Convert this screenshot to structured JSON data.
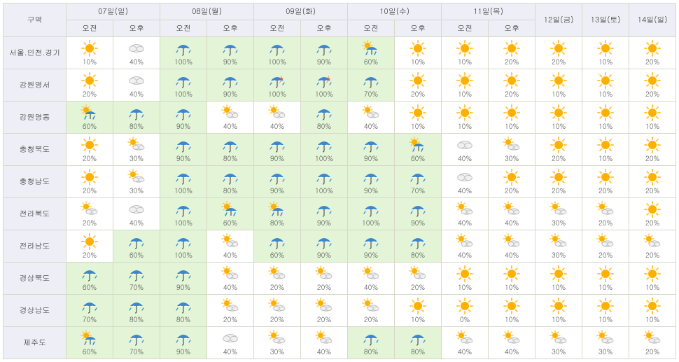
{
  "header": {
    "region_label": "구역",
    "days": [
      {
        "label": "07일(일)",
        "split": true,
        "sub": [
          "오전",
          "오후"
        ]
      },
      {
        "label": "08일(월)",
        "split": true,
        "sub": [
          "오전",
          "오후"
        ]
      },
      {
        "label": "09일(화)",
        "split": true,
        "sub": [
          "오전",
          "오후"
        ]
      },
      {
        "label": "10일(수)",
        "split": true,
        "sub": [
          "오전",
          "오후"
        ]
      },
      {
        "label": "11일(목)",
        "split": true,
        "sub": [
          "오전",
          "오후"
        ]
      },
      {
        "label": "12일(금)",
        "split": false
      },
      {
        "label": "13일(토)",
        "split": false
      },
      {
        "label": "14일(일)",
        "split": false
      }
    ]
  },
  "colors": {
    "rain_bg": "#e3f4d7",
    "header_bg": "#eeeef6",
    "border": "#d8d8c8",
    "sun_core": "#ffb000",
    "sun_ray": "#ffc840",
    "cloud_fill": "#f0f0f0",
    "cloud_stroke": "#b8b8b8",
    "rain_umbrella": "#3a86d1",
    "thunder": "#e74c3c"
  },
  "legend_icons": {
    "sunny": "sunny",
    "partly": "partly-cloudy",
    "cloudy": "cloudy",
    "rain": "rain",
    "rain_sun": "rain-sun",
    "storm": "rain-thunder"
  },
  "regions": [
    {
      "name": "서울.인천.경기",
      "cells": [
        {
          "p": 10,
          "i": "sunny"
        },
        {
          "p": 40,
          "i": "cloudy"
        },
        {
          "p": 100,
          "i": "rain"
        },
        {
          "p": 90,
          "i": "rain"
        },
        {
          "p": 100,
          "i": "rain"
        },
        {
          "p": 90,
          "i": "rain"
        },
        {
          "p": 60,
          "i": "rain_sun"
        },
        {
          "p": 10,
          "i": "sunny"
        },
        {
          "p": 10,
          "i": "sunny"
        },
        {
          "p": 20,
          "i": "sunny"
        },
        {
          "p": 20,
          "i": "sunny"
        },
        {
          "p": 10,
          "i": "sunny"
        },
        {
          "p": 20,
          "i": "sunny"
        }
      ]
    },
    {
      "name": "강원영서",
      "cells": [
        {
          "p": 20,
          "i": "sunny"
        },
        {
          "p": 40,
          "i": "cloudy"
        },
        {
          "p": 100,
          "i": "rain"
        },
        {
          "p": 90,
          "i": "rain"
        },
        {
          "p": 100,
          "i": "storm"
        },
        {
          "p": 100,
          "i": "storm"
        },
        {
          "p": 70,
          "i": "rain"
        },
        {
          "p": 20,
          "i": "sunny"
        },
        {
          "p": 10,
          "i": "sunny"
        },
        {
          "p": 20,
          "i": "sunny"
        },
        {
          "p": 10,
          "i": "sunny"
        },
        {
          "p": 10,
          "i": "sunny"
        },
        {
          "p": 20,
          "i": "sunny"
        }
      ]
    },
    {
      "name": "강원영동",
      "cells": [
        {
          "p": 60,
          "i": "rain_sun"
        },
        {
          "p": 80,
          "i": "rain"
        },
        {
          "p": 90,
          "i": "rain"
        },
        {
          "p": 40,
          "i": "partly"
        },
        {
          "p": 40,
          "i": "partly"
        },
        {
          "p": 80,
          "i": "rain"
        },
        {
          "p": 40,
          "i": "partly"
        },
        {
          "p": 10,
          "i": "sunny"
        },
        {
          "p": 10,
          "i": "sunny"
        },
        {
          "p": 10,
          "i": "sunny"
        },
        {
          "p": 10,
          "i": "sunny"
        },
        {
          "p": 10,
          "i": "sunny"
        },
        {
          "p": 10,
          "i": "sunny"
        }
      ]
    },
    {
      "name": "충청북도",
      "cells": [
        {
          "p": 20,
          "i": "sunny"
        },
        {
          "p": 30,
          "i": "partly"
        },
        {
          "p": 90,
          "i": "rain"
        },
        {
          "p": 80,
          "i": "rain"
        },
        {
          "p": 90,
          "i": "rain"
        },
        {
          "p": 100,
          "i": "rain"
        },
        {
          "p": 90,
          "i": "rain"
        },
        {
          "p": 60,
          "i": "rain_sun"
        },
        {
          "p": 40,
          "i": "cloudy"
        },
        {
          "p": 30,
          "i": "partly"
        },
        {
          "p": 20,
          "i": "sunny"
        },
        {
          "p": 10,
          "i": "sunny"
        },
        {
          "p": 20,
          "i": "sunny"
        }
      ]
    },
    {
      "name": "충청남도",
      "cells": [
        {
          "p": 20,
          "i": "sunny"
        },
        {
          "p": 30,
          "i": "partly"
        },
        {
          "p": 100,
          "i": "rain"
        },
        {
          "p": 80,
          "i": "rain"
        },
        {
          "p": 90,
          "i": "rain"
        },
        {
          "p": 100,
          "i": "rain"
        },
        {
          "p": 90,
          "i": "rain"
        },
        {
          "p": 70,
          "i": "rain"
        },
        {
          "p": 40,
          "i": "cloudy"
        },
        {
          "p": 20,
          "i": "sunny"
        },
        {
          "p": 20,
          "i": "sunny"
        },
        {
          "p": 20,
          "i": "sunny"
        },
        {
          "p": 20,
          "i": "sunny"
        }
      ]
    },
    {
      "name": "전라북도",
      "cells": [
        {
          "p": 20,
          "i": "partly"
        },
        {
          "p": 40,
          "i": "cloudy"
        },
        {
          "p": 100,
          "i": "rain"
        },
        {
          "p": 60,
          "i": "rain_sun"
        },
        {
          "p": 80,
          "i": "rain_sun"
        },
        {
          "p": 90,
          "i": "rain"
        },
        {
          "p": 100,
          "i": "rain"
        },
        {
          "p": 90,
          "i": "rain"
        },
        {
          "p": 40,
          "i": "partly"
        },
        {
          "p": 40,
          "i": "partly"
        },
        {
          "p": 30,
          "i": "partly"
        },
        {
          "p": 20,
          "i": "partly"
        },
        {
          "p": 20,
          "i": "sunny"
        }
      ]
    },
    {
      "name": "전라남도",
      "cells": [
        {
          "p": 20,
          "i": "sunny"
        },
        {
          "p": 60,
          "i": "rain"
        },
        {
          "p": 100,
          "i": "rain"
        },
        {
          "p": 40,
          "i": "partly"
        },
        {
          "p": 60,
          "i": "rain"
        },
        {
          "p": 90,
          "i": "rain"
        },
        {
          "p": 90,
          "i": "rain"
        },
        {
          "p": 80,
          "i": "rain"
        },
        {
          "p": 40,
          "i": "partly"
        },
        {
          "p": 40,
          "i": "partly"
        },
        {
          "p": 30,
          "i": "partly"
        },
        {
          "p": 20,
          "i": "partly"
        },
        {
          "p": 20,
          "i": "partly"
        }
      ]
    },
    {
      "name": "경상북도",
      "cells": [
        {
          "p": 60,
          "i": "rain"
        },
        {
          "p": 70,
          "i": "rain"
        },
        {
          "p": 90,
          "i": "rain"
        },
        {
          "p": 40,
          "i": "partly"
        },
        {
          "p": 20,
          "i": "partly"
        },
        {
          "p": 20,
          "i": "partly"
        },
        {
          "p": 40,
          "i": "partly"
        },
        {
          "p": 20,
          "i": "partly"
        },
        {
          "p": 10,
          "i": "sunny"
        },
        {
          "p": 10,
          "i": "sunny"
        },
        {
          "p": 10,
          "i": "sunny"
        },
        {
          "p": 10,
          "i": "sunny"
        },
        {
          "p": 10,
          "i": "sunny"
        }
      ]
    },
    {
      "name": "경상남도",
      "cells": [
        {
          "p": 70,
          "i": "rain"
        },
        {
          "p": 80,
          "i": "rain"
        },
        {
          "p": 80,
          "i": "rain"
        },
        {
          "p": 20,
          "i": "partly"
        },
        {
          "p": 20,
          "i": "partly"
        },
        {
          "p": 20,
          "i": "partly"
        },
        {
          "p": 20,
          "i": "partly"
        },
        {
          "p": 10,
          "i": "sunny"
        },
        {
          "p": 0,
          "i": "sunny"
        },
        {
          "p": 10,
          "i": "sunny"
        },
        {
          "p": 10,
          "i": "sunny"
        },
        {
          "p": 10,
          "i": "sunny"
        },
        {
          "p": 10,
          "i": "sunny"
        }
      ]
    },
    {
      "name": "제주도",
      "cells": [
        {
          "p": 60,
          "i": "rain_sun"
        },
        {
          "p": 70,
          "i": "rain"
        },
        {
          "p": 90,
          "i": "rain"
        },
        {
          "p": 40,
          "i": "cloudy"
        },
        {
          "p": 30,
          "i": "partly"
        },
        {
          "p": 40,
          "i": "partly"
        },
        {
          "p": 80,
          "i": "rain"
        },
        {
          "p": 80,
          "i": "rain"
        },
        {
          "p": 40,
          "i": "partly"
        },
        {
          "p": 40,
          "i": "partly"
        },
        {
          "p": 30,
          "i": "partly"
        },
        {
          "p": 30,
          "i": "partly"
        },
        {
          "p": 20,
          "i": "partly"
        }
      ]
    }
  ],
  "rain_threshold": 60
}
